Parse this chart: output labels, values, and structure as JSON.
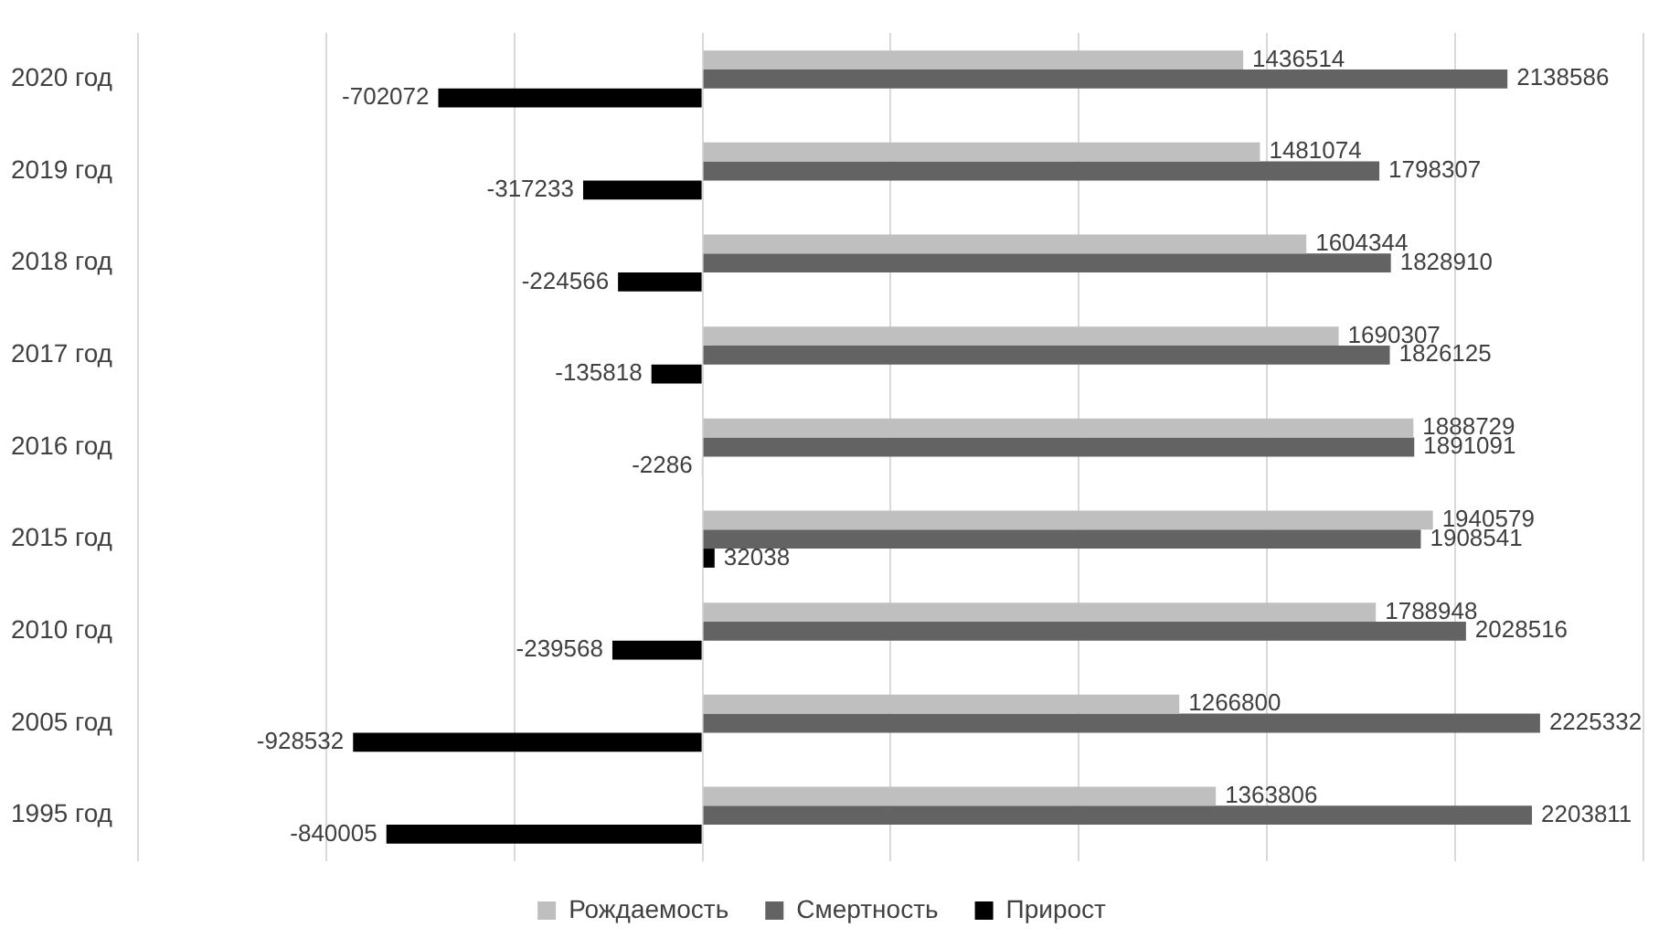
{
  "chart_data": {
    "type": "bar",
    "orientation": "horizontal",
    "categories": [
      "2020 год",
      "2019 год",
      "2018 год",
      "2017 год",
      "2016 год",
      "2015 год",
      "2010 год",
      "2005 год",
      "1995 год"
    ],
    "series": [
      {
        "name": "Рождаемость",
        "color": "#bfbfbf",
        "values": [
          1436514,
          1481074,
          1604344,
          1690307,
          1888729,
          1940579,
          1788948,
          1266800,
          1363806
        ]
      },
      {
        "name": "Смертность",
        "color": "#636363",
        "values": [
          2138586,
          1798307,
          1828910,
          1826125,
          1891091,
          1908541,
          2028516,
          2225332,
          2203811
        ]
      },
      {
        "name": "Прирост",
        "color": "#000000",
        "values": [
          -702072,
          -317233,
          -224566,
          -135818,
          -2286,
          32038,
          -239568,
          -928532,
          -840005
        ]
      }
    ],
    "xlim": [
      -1500000,
      2500000
    ],
    "xticks": [
      {
        "value": -1500000,
        "label": null
      },
      {
        "value": -1000000,
        "label": null
      },
      {
        "value": -500000,
        "label": null
      },
      {
        "value": 0,
        "label": null
      },
      {
        "value": 500000,
        "label": null
      },
      {
        "value": 1000000,
        "label": null
      },
      {
        "value": 1500000,
        "label": null
      },
      {
        "value": 2000000,
        "label": null
      },
      {
        "value": 2500000,
        "label": null
      }
    ],
    "tick_labels": "y",
    "grid": "x",
    "legend": "bottom",
    "data_labels": true
  }
}
